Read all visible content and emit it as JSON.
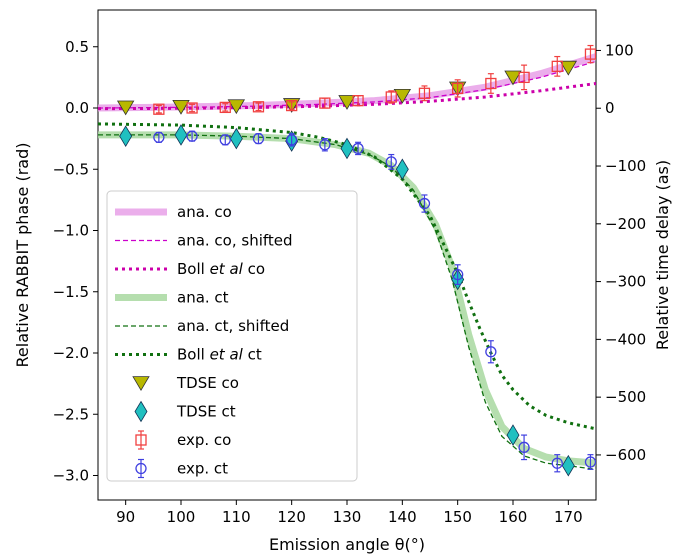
{
  "chart_data": {
    "type": "line",
    "xlabel": "Emission angle θ(°)",
    "ylabel": "Relative RABBIT phase (rad)",
    "ylabel_right": "Relative time delay (as)",
    "xlim": [
      85,
      175
    ],
    "ylim": [
      -3.2,
      0.8
    ],
    "ylim_right_as": [
      -678,
      170
    ],
    "x_ticks": [
      90,
      100,
      110,
      120,
      130,
      140,
      150,
      160,
      170
    ],
    "y_ticks": [
      -3.0,
      -2.5,
      -2.0,
      -1.5,
      -1.0,
      -0.5,
      0.0,
      0.5
    ],
    "y_tick_labels": [
      "−3.0",
      "−2.5",
      "−2.0",
      "−1.5",
      "−1.0",
      "−0.5",
      "0.0",
      "0.5"
    ],
    "y_right_ticks": [
      100,
      0,
      -100,
      -200,
      -300,
      -400,
      -500,
      -600
    ],
    "y_right_tick_labels": [
      "100",
      "0",
      "−100",
      "−200",
      "−300",
      "−400",
      "−500",
      "−600"
    ],
    "grid": false,
    "legend_position": "lower-left",
    "series": [
      {
        "name": "ana. co",
        "style": "band",
        "color": "#e8a0e8",
        "x": [
          85,
          95,
          105,
          115,
          125,
          135,
          145,
          155,
          165,
          175
        ],
        "y": [
          0.0,
          0.005,
          0.012,
          0.022,
          0.038,
          0.06,
          0.1,
          0.17,
          0.28,
          0.42
        ]
      },
      {
        "name": "ana. co, shifted",
        "style": "dashed",
        "color": "#cc00cc",
        "x": [
          85,
          95,
          105,
          115,
          125,
          135,
          145,
          155,
          165,
          175
        ],
        "y": [
          0.0,
          0.003,
          0.008,
          0.016,
          0.03,
          0.05,
          0.085,
          0.15,
          0.25,
          0.38
        ]
      },
      {
        "name": "Boll et al co",
        "label_parts": [
          "Boll ",
          "et al",
          " co"
        ],
        "style": "dotted",
        "color": "#cc00aa",
        "x": [
          85,
          95,
          105,
          115,
          125,
          135,
          145,
          155,
          165,
          175
        ],
        "y": [
          -0.005,
          -0.004,
          0.0,
          0.006,
          0.015,
          0.03,
          0.055,
          0.09,
          0.14,
          0.2
        ]
      },
      {
        "name": "ana. ct",
        "style": "band",
        "color": "#a8d8a0",
        "x": [
          85,
          100,
          110,
          120,
          128,
          134,
          138,
          142,
          146,
          149,
          152,
          155,
          158,
          162,
          166,
          170,
          175
        ],
        "y": [
          -0.22,
          -0.22,
          -0.23,
          -0.25,
          -0.3,
          -0.37,
          -0.47,
          -0.65,
          -0.95,
          -1.3,
          -1.85,
          -2.3,
          -2.6,
          -2.78,
          -2.85,
          -2.88,
          -2.9
        ]
      },
      {
        "name": "ana. ct, shifted",
        "style": "dashed",
        "color": "#107010",
        "x": [
          85,
          100,
          110,
          120,
          128,
          134,
          138,
          142,
          146,
          149,
          152,
          155,
          158,
          162,
          166,
          170,
          175
        ],
        "y": [
          -0.22,
          -0.22,
          -0.23,
          -0.25,
          -0.3,
          -0.38,
          -0.48,
          -0.67,
          -1.0,
          -1.4,
          -1.95,
          -2.4,
          -2.68,
          -2.84,
          -2.9,
          -2.92,
          -2.95
        ]
      },
      {
        "name": "Boll et al ct",
        "label_parts": [
          "Boll ",
          "et al",
          " ct"
        ],
        "style": "dotted",
        "color": "#107010",
        "x": [
          85,
          100,
          110,
          120,
          125,
          130,
          135,
          140,
          145,
          150,
          152,
          154,
          156,
          158,
          160,
          163,
          166,
          170,
          175
        ],
        "y": [
          -0.13,
          -0.14,
          -0.16,
          -0.2,
          -0.24,
          -0.3,
          -0.4,
          -0.58,
          -0.88,
          -1.35,
          -1.58,
          -1.8,
          -2.0,
          -2.18,
          -2.3,
          -2.43,
          -2.51,
          -2.57,
          -2.62
        ]
      },
      {
        "name": "TDSE co",
        "style": "marker-triangle-down",
        "color": "#b8b800",
        "x": [
          90,
          100,
          110,
          120,
          130,
          140,
          150,
          160,
          170
        ],
        "y": [
          0.005,
          0.01,
          0.015,
          0.025,
          0.05,
          0.1,
          0.16,
          0.25,
          0.33
        ]
      },
      {
        "name": "TDSE ct",
        "style": "marker-diamond",
        "color": "#20c0c0",
        "x": [
          90,
          100,
          110,
          120,
          130,
          140,
          150,
          160,
          170
        ],
        "y": [
          -0.23,
          -0.22,
          -0.25,
          -0.27,
          -0.33,
          -0.5,
          -1.4,
          -2.67,
          -2.92
        ]
      },
      {
        "name": "exp. co",
        "style": "marker-square-errorbar",
        "color": "#f04040",
        "x": [
          96,
          102,
          108,
          114,
          120,
          126,
          132,
          138,
          144,
          150,
          156,
          162,
          168,
          174
        ],
        "y": [
          -0.01,
          0.0,
          0.005,
          0.01,
          0.02,
          0.04,
          0.06,
          0.09,
          0.12,
          0.16,
          0.2,
          0.25,
          0.34,
          0.44
        ],
        "yerr": [
          0.03,
          0.03,
          0.03,
          0.03,
          0.03,
          0.04,
          0.04,
          0.05,
          0.06,
          0.07,
          0.08,
          0.1,
          0.08,
          0.07
        ]
      },
      {
        "name": "exp. ct",
        "style": "marker-circle-errorbar",
        "color": "#4040e0",
        "x": [
          96,
          102,
          108,
          114,
          120,
          126,
          132,
          138,
          144,
          150,
          156,
          162,
          168,
          174
        ],
        "y": [
          -0.24,
          -0.23,
          -0.26,
          -0.25,
          -0.26,
          -0.3,
          -0.33,
          -0.44,
          -0.78,
          -1.36,
          -1.99,
          -2.77,
          -2.9,
          -2.89
        ],
        "yerr": [
          0.04,
          0.04,
          0.04,
          0.04,
          0.05,
          0.05,
          0.05,
          0.06,
          0.07,
          0.08,
          0.09,
          0.1,
          0.07,
          0.06
        ]
      }
    ]
  }
}
